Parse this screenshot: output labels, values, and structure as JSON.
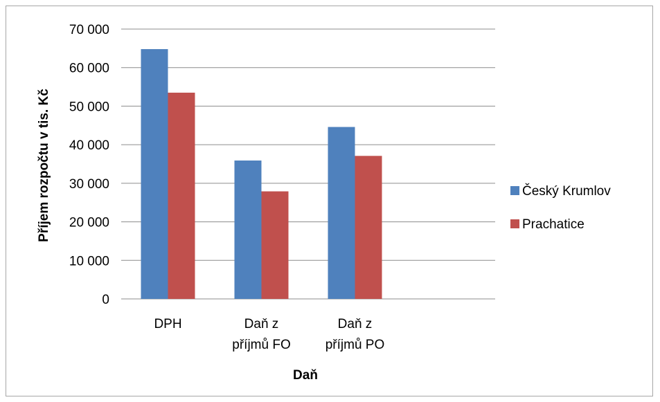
{
  "chart_data": {
    "type": "bar",
    "title": "",
    "xlabel": "Daň",
    "ylabel": "Příjem rozpočtu v tis. Kč",
    "ylim": [
      0,
      70000
    ],
    "ytick_step": 10000,
    "ytick_labels": [
      "0",
      "10 000",
      "20 000",
      "30 000",
      "40 000",
      "50 000",
      "60 000",
      "70 000"
    ],
    "categories": [
      [
        "DPH"
      ],
      [
        "Daň z",
        "příjmů FO"
      ],
      [
        "Daň z",
        "příjmů PO"
      ],
      [
        ""
      ]
    ],
    "series": [
      {
        "name": "Český Krumlov",
        "color": "#4F81BD",
        "values": [
          64800,
          35900,
          44600,
          null
        ]
      },
      {
        "name": "Prachatice",
        "color": "#C0504D",
        "values": [
          53500,
          27900,
          37100,
          null
        ]
      }
    ],
    "grid": true,
    "legend_position": "right",
    "gridline_color": "#8c8c8c"
  }
}
